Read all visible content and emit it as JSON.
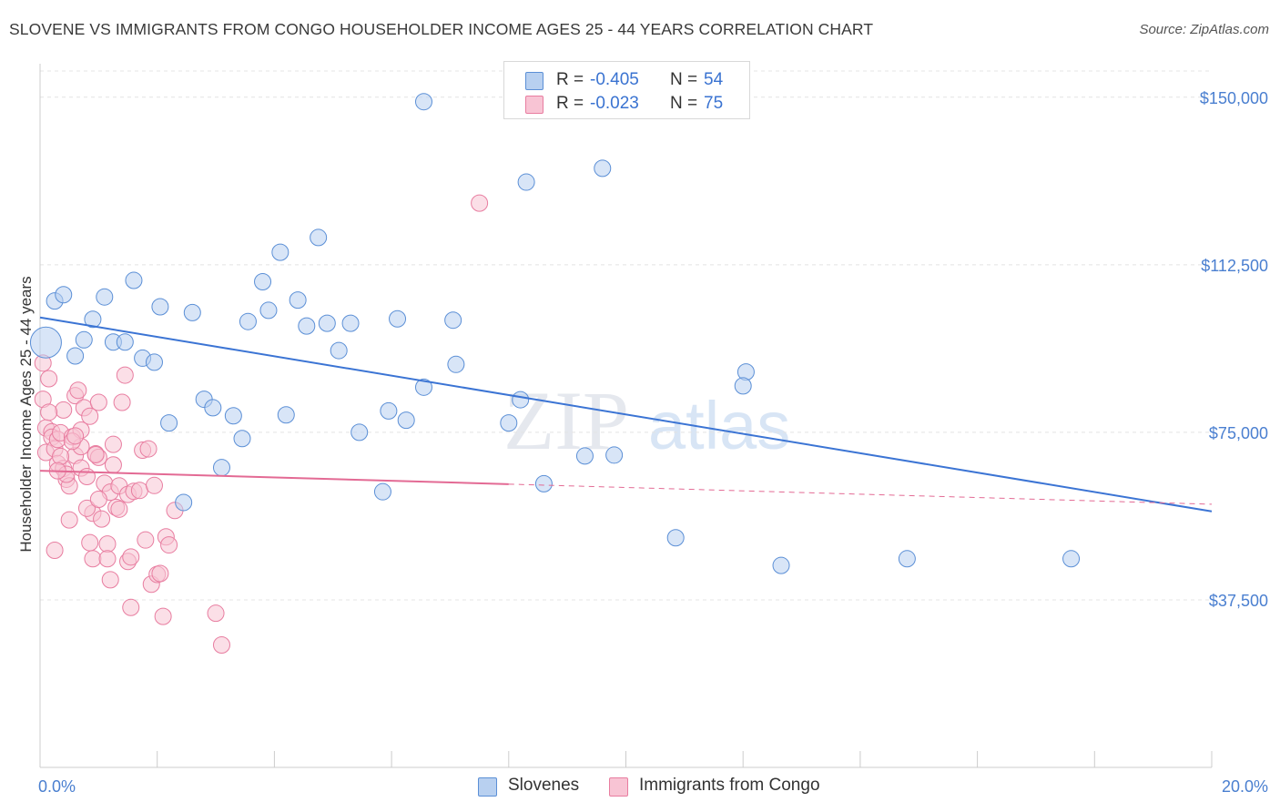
{
  "header": {
    "title": "SLOVENE VS IMMIGRANTS FROM CONGO HOUSEHOLDER INCOME AGES 25 - 44 YEARS CORRELATION CHART",
    "source": "Source: ZipAtlas.com"
  },
  "colors": {
    "blue": "#5b8fd6",
    "blue_fill": "#b8d0f0",
    "blue_line": "#3b74d4",
    "pink": "#e87da0",
    "pink_fill": "#f8c4d4",
    "pink_line": "#e36a94",
    "axis_label": "#4a7fd0"
  },
  "stats": {
    "slovenes": {
      "r_label": "R =",
      "r_value": "-0.405",
      "n_label": "N =",
      "n_value": "54"
    },
    "congo": {
      "r_label": "R =",
      "r_value": "-0.023",
      "n_label": "N =",
      "n_value": "75"
    }
  },
  "legend": {
    "slovenes": "Slovenes",
    "congo": "Immigrants from Congo"
  },
  "chart_data": {
    "type": "scatter",
    "title": "SLOVENE VS IMMIGRANTS FROM CONGO HOUSEHOLDER INCOME AGES 25 - 44 YEARS CORRELATION CHART",
    "xlabel": "",
    "ylabel": "Householder Income Ages 25 - 44 years",
    "xlim": [
      0,
      20
    ],
    "ylim": [
      0,
      157500
    ],
    "x_tick_labels": [
      "0.0%",
      "20.0%"
    ],
    "x_ticks": [
      0,
      20
    ],
    "y_ticks": [
      37500,
      75000,
      112500,
      150000
    ],
    "y_tick_labels": [
      "$37,500",
      "$75,000",
      "$112,500",
      "$150,000"
    ],
    "grid": true,
    "series": [
      {
        "name": "Slovenes",
        "color": "#5b8fd6",
        "points": [
          [
            0.1,
            95100
          ],
          [
            0.25,
            104400
          ],
          [
            0.4,
            105800
          ],
          [
            0.6,
            92100
          ],
          [
            0.75,
            95700
          ],
          [
            0.9,
            100300
          ],
          [
            1.1,
            105300
          ],
          [
            1.25,
            95200
          ],
          [
            1.45,
            95200
          ],
          [
            1.6,
            109000
          ],
          [
            1.75,
            91600
          ],
          [
            1.95,
            90700
          ],
          [
            2.05,
            103100
          ],
          [
            2.2,
            77100
          ],
          [
            2.45,
            59300
          ],
          [
            2.6,
            101800
          ],
          [
            2.8,
            82400
          ],
          [
            2.95,
            80500
          ],
          [
            3.1,
            67100
          ],
          [
            3.3,
            78700
          ],
          [
            3.45,
            73600
          ],
          [
            3.55,
            99800
          ],
          [
            3.8,
            108700
          ],
          [
            3.9,
            102300
          ],
          [
            4.1,
            115300
          ],
          [
            4.2,
            78900
          ],
          [
            4.4,
            104600
          ],
          [
            4.55,
            98800
          ],
          [
            4.75,
            118600
          ],
          [
            4.9,
            99400
          ],
          [
            5.1,
            93300
          ],
          [
            5.3,
            99400
          ],
          [
            5.45,
            75000
          ],
          [
            5.85,
            61700
          ],
          [
            5.95,
            79800
          ],
          [
            6.1,
            100400
          ],
          [
            6.25,
            77700
          ],
          [
            6.55,
            85100
          ],
          [
            6.55,
            149000
          ],
          [
            7.1,
            90200
          ],
          [
            7.05,
            100100
          ],
          [
            8.0,
            77100
          ],
          [
            8.2,
            82300
          ],
          [
            8.3,
            131000
          ],
          [
            8.6,
            63500
          ],
          [
            9.3,
            69700
          ],
          [
            9.6,
            134100
          ],
          [
            9.8,
            69900
          ],
          [
            10.85,
            51400
          ],
          [
            12.05,
            88500
          ],
          [
            12.0,
            85400
          ],
          [
            12.65,
            45200
          ],
          [
            14.8,
            46700
          ],
          [
            17.6,
            46700
          ]
        ],
        "trend": {
          "x": [
            0,
            20
          ],
          "y": [
            100700,
            57300
          ]
        }
      },
      {
        "name": "Immigrants from Congo",
        "color": "#e87da0",
        "points": [
          [
            0.05,
            90500
          ],
          [
            0.05,
            82400
          ],
          [
            0.1,
            76000
          ],
          [
            0.1,
            70500
          ],
          [
            0.15,
            87000
          ],
          [
            0.2,
            75100
          ],
          [
            0.2,
            73900
          ],
          [
            0.25,
            71300
          ],
          [
            0.3,
            73400
          ],
          [
            0.3,
            68000
          ],
          [
            0.35,
            74900
          ],
          [
            0.4,
            80000
          ],
          [
            0.4,
            66900
          ],
          [
            0.45,
            64500
          ],
          [
            0.5,
            63000
          ],
          [
            0.5,
            55400
          ],
          [
            0.55,
            74000
          ],
          [
            0.6,
            69800
          ],
          [
            0.6,
            83200
          ],
          [
            0.65,
            84400
          ],
          [
            0.7,
            71800
          ],
          [
            0.7,
            67000
          ],
          [
            0.75,
            80500
          ],
          [
            0.8,
            65100
          ],
          [
            0.85,
            78600
          ],
          [
            0.85,
            50300
          ],
          [
            0.9,
            46700
          ],
          [
            0.9,
            56900
          ],
          [
            0.95,
            70200
          ],
          [
            1.0,
            81700
          ],
          [
            1.0,
            69400
          ],
          [
            1.05,
            55600
          ],
          [
            1.1,
            63600
          ],
          [
            1.15,
            50000
          ],
          [
            1.15,
            46700
          ],
          [
            1.2,
            61600
          ],
          [
            1.25,
            72300
          ],
          [
            1.25,
            67700
          ],
          [
            1.3,
            58200
          ],
          [
            1.35,
            63000
          ],
          [
            1.35,
            57800
          ],
          [
            1.4,
            81700
          ],
          [
            1.45,
            87800
          ],
          [
            1.5,
            61100
          ],
          [
            1.5,
            46100
          ],
          [
            1.55,
            47100
          ],
          [
            1.55,
            35800
          ],
          [
            1.6,
            61800
          ],
          [
            1.7,
            62000
          ],
          [
            1.75,
            71000
          ],
          [
            1.8,
            50900
          ],
          [
            1.85,
            71300
          ],
          [
            1.9,
            41000
          ],
          [
            1.95,
            63100
          ],
          [
            2.0,
            43200
          ],
          [
            2.05,
            43400
          ],
          [
            2.1,
            33800
          ],
          [
            2.15,
            51600
          ],
          [
            2.2,
            49800
          ],
          [
            2.3,
            57500
          ],
          [
            3.0,
            34500
          ],
          [
            3.1,
            27400
          ],
          [
            7.5,
            126300
          ],
          [
            0.95,
            70000
          ],
          [
            0.7,
            75500
          ],
          [
            0.55,
            73000
          ],
          [
            0.45,
            65600
          ],
          [
            0.35,
            69600
          ],
          [
            0.8,
            58000
          ],
          [
            1.0,
            60000
          ],
          [
            1.2,
            42000
          ],
          [
            0.25,
            48600
          ],
          [
            0.6,
            74200
          ],
          [
            0.3,
            66400
          ],
          [
            0.15,
            79500
          ]
        ],
        "trend": {
          "x": [
            0,
            8
          ],
          "y": [
            66400,
            63400
          ]
        },
        "trend_dashed": {
          "x": [
            8,
            20
          ],
          "y": [
            63400,
            58900
          ]
        }
      }
    ]
  }
}
